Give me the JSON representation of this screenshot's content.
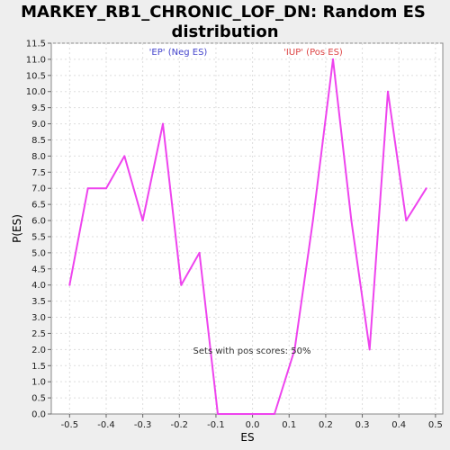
{
  "chart_data": {
    "type": "line",
    "title_line1": "MARKEY_RB1_CHRONIC_LOF_DN: Random ES",
    "title_line2": "distribution",
    "xlabel": "ES",
    "ylabel": "P(ES)",
    "xlim": [
      -0.55,
      0.52
    ],
    "ylim": [
      0,
      11.5
    ],
    "x_ticks": [
      "-0.5",
      "-0.4",
      "-0.3",
      "-0.2",
      "-0.1",
      "0.0",
      "0.1",
      "0.2",
      "0.3",
      "0.4",
      "0.5"
    ],
    "y_ticks": [
      "0.0",
      "0.5",
      "1.0",
      "1.5",
      "2.0",
      "2.5",
      "3.0",
      "3.5",
      "4.0",
      "4.5",
      "5.0",
      "5.5",
      "6.0",
      "6.5",
      "7.0",
      "7.5",
      "8.0",
      "8.5",
      "9.0",
      "9.5",
      "10.0",
      "10.5",
      "11.0",
      "11.5"
    ],
    "grid": true,
    "series": [
      {
        "color": "#ee44ee",
        "x": [
          -0.5,
          -0.45,
          -0.4,
          -0.35,
          -0.3,
          -0.245,
          -0.195,
          -0.145,
          -0.095,
          -0.045,
          0.005,
          0.06,
          0.115,
          0.165,
          0.22,
          0.27,
          0.32,
          0.37,
          0.42,
          0.475
        ],
        "y": [
          4.0,
          7.0,
          7.0,
          8.0,
          6.0,
          9.0,
          4.0,
          5.0,
          0.0,
          0.0,
          0.0,
          0.0,
          2.0,
          6.0,
          11.0,
          6.0,
          2.0,
          10.0,
          6.0,
          7.0
        ]
      }
    ],
    "annotations": {
      "neg_label": "'EP' (Neg ES)",
      "neg_color": "#4444cc",
      "pos_label": "'IUP' (Pos ES)",
      "pos_color": "#dd4444",
      "sets_text": "Sets with pos scores: 50%"
    }
  }
}
